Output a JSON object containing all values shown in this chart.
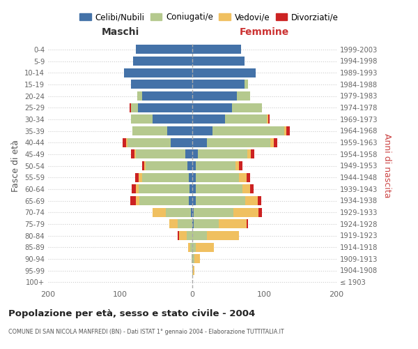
{
  "age_groups": [
    "100+",
    "95-99",
    "90-94",
    "85-89",
    "80-84",
    "75-79",
    "70-74",
    "65-69",
    "60-64",
    "55-59",
    "50-54",
    "45-49",
    "40-44",
    "35-39",
    "30-34",
    "25-29",
    "20-24",
    "15-19",
    "10-14",
    "5-9",
    "0-4"
  ],
  "birth_years": [
    "≤ 1903",
    "1904-1908",
    "1909-1913",
    "1914-1918",
    "1919-1923",
    "1924-1928",
    "1929-1933",
    "1934-1938",
    "1939-1943",
    "1944-1948",
    "1949-1953",
    "1954-1958",
    "1959-1963",
    "1964-1968",
    "1969-1973",
    "1974-1978",
    "1979-1983",
    "1984-1988",
    "1989-1993",
    "1994-1998",
    "1999-2003"
  ],
  "maschi": {
    "celibi": [
      0,
      0,
      0,
      0,
      0,
      0,
      2,
      5,
      4,
      5,
      7,
      10,
      30,
      35,
      55,
      75,
      70,
      85,
      95,
      82,
      78
    ],
    "coniugati": [
      0,
      0,
      1,
      3,
      8,
      20,
      35,
      68,
      70,
      65,
      58,
      68,
      60,
      48,
      30,
      10,
      6,
      0,
      0,
      0,
      0
    ],
    "vedovi": [
      0,
      0,
      0,
      3,
      10,
      12,
      18,
      5,
      4,
      4,
      2,
      2,
      2,
      0,
      0,
      0,
      0,
      0,
      0,
      0,
      0
    ],
    "divorziati": [
      0,
      0,
      0,
      0,
      2,
      0,
      0,
      8,
      6,
      5,
      3,
      5,
      5,
      0,
      0,
      2,
      0,
      0,
      0,
      0,
      0
    ]
  },
  "femmine": {
    "nubili": [
      0,
      0,
      0,
      0,
      0,
      2,
      2,
      5,
      5,
      5,
      5,
      8,
      20,
      28,
      45,
      55,
      62,
      72,
      88,
      72,
      68
    ],
    "coniugate": [
      0,
      1,
      3,
      5,
      20,
      35,
      55,
      68,
      65,
      60,
      55,
      68,
      88,
      100,
      58,
      42,
      18,
      5,
      0,
      0,
      0
    ],
    "vedove": [
      0,
      2,
      8,
      25,
      45,
      38,
      35,
      18,
      10,
      10,
      5,
      5,
      5,
      2,
      2,
      0,
      0,
      0,
      0,
      0,
      0
    ],
    "divorziate": [
      0,
      0,
      0,
      0,
      0,
      2,
      5,
      5,
      5,
      5,
      5,
      5,
      5,
      5,
      2,
      0,
      0,
      0,
      0,
      0,
      0
    ]
  },
  "colors": {
    "celibi": "#4472a8",
    "coniugati": "#b5c98e",
    "vedovi": "#f0c060",
    "divorziati": "#cc2222"
  },
  "title": "Popolazione per età, sesso e stato civile - 2004",
  "subtitle": "COMUNE DI SAN NICOLA MANFREDI (BN) - Dati ISTAT 1° gennaio 2004 - Elaborazione TUTTITALIA.IT",
  "xlabel_left": "Maschi",
  "xlabel_right": "Femmine",
  "ylabel_left": "Fasce di età",
  "ylabel_right": "Anni di nascita",
  "xlim": 200,
  "bg_color": "#ffffff",
  "grid_color": "#cccccc",
  "legend": [
    "Celibi/Nubili",
    "Coniugati/e",
    "Vedovi/e",
    "Divorziati/e"
  ]
}
